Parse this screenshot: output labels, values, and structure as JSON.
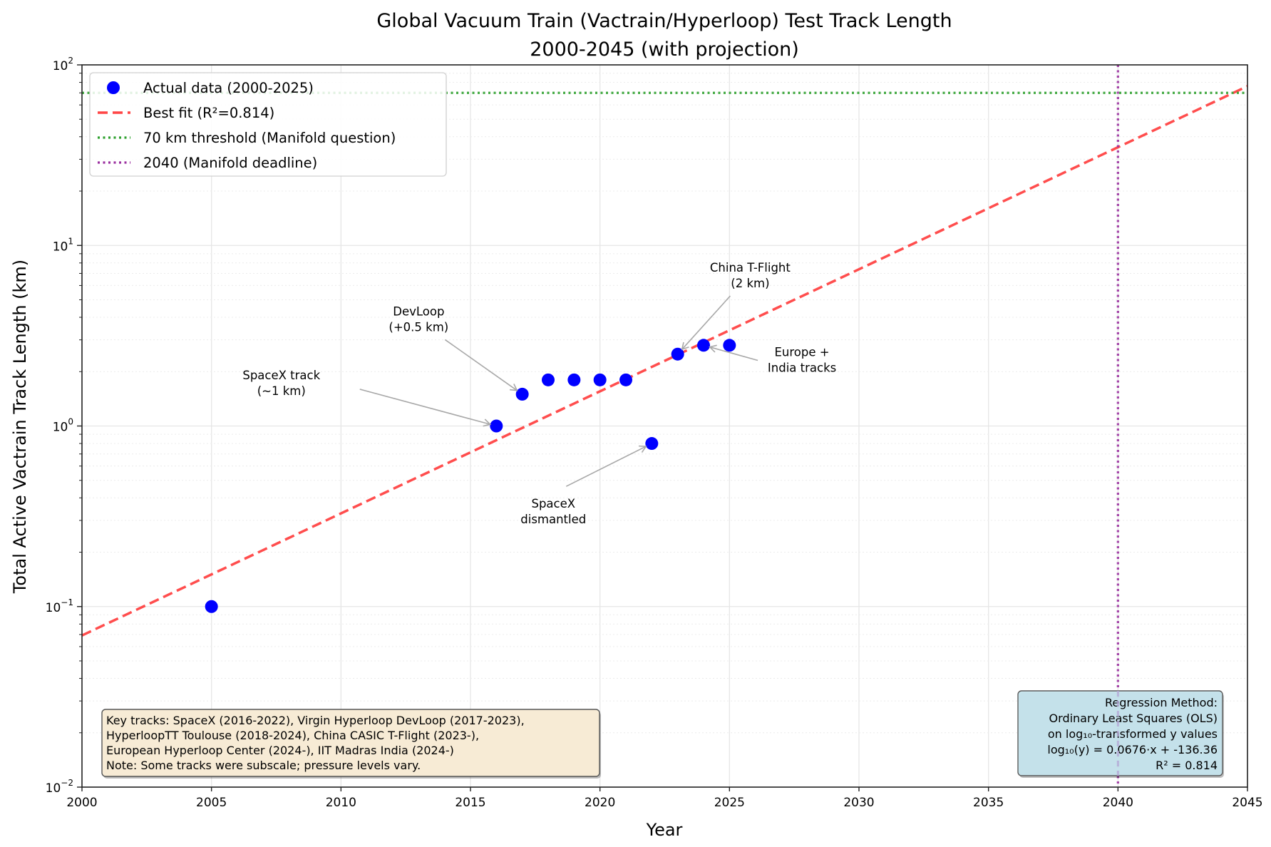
{
  "chart_data": {
    "type": "scatter",
    "title": "Global Vacuum Train (Vactrain/Hyperloop) Test Track Length",
    "subtitle": "2000-2045 (with projection)",
    "xlabel": "Year",
    "ylabel": "Total Active Vactrain Track Length (km)",
    "xlim": [
      2000,
      2045
    ],
    "ylim": [
      0.01,
      100
    ],
    "yscale": "log",
    "grid": true,
    "x_ticks": [
      "2000",
      "2005",
      "2010",
      "2015",
      "2020",
      "2025",
      "2030",
      "2035",
      "2040",
      "2045"
    ],
    "y_ticks": [
      {
        "base": "10",
        "exp": "−2",
        "value": 0.01
      },
      {
        "base": "10",
        "exp": "−1",
        "value": 0.1
      },
      {
        "base": "10",
        "exp": "0",
        "value": 1
      },
      {
        "base": "10",
        "exp": "1",
        "value": 10
      },
      {
        "base": "10",
        "exp": "2",
        "value": 100
      }
    ],
    "series": [
      {
        "name": "Actual data (2000-2025)",
        "kind": "scatter",
        "color": "#0000ff",
        "x": [
          2005,
          2016,
          2017,
          2018,
          2019,
          2020,
          2021,
          2022,
          2023,
          2024,
          2025
        ],
        "y": [
          0.1,
          1.0,
          1.5,
          1.8,
          1.8,
          1.8,
          1.8,
          0.8,
          2.5,
          2.8,
          2.8
        ]
      },
      {
        "name": "Best fit (R²=0.814)",
        "kind": "line",
        "style": "dashed",
        "color": "#ff4444",
        "slope": 0.0676,
        "intercept": -136.36,
        "x_range": [
          2000,
          2045
        ]
      },
      {
        "name": "70 km threshold (Manifold question)",
        "kind": "hline",
        "style": "dotted",
        "color": "#2ca02c",
        "y": 70
      },
      {
        "name": "2040 (Manifold deadline)",
        "kind": "vline",
        "style": "dotted",
        "color": "#9b30a0",
        "x": 2040
      }
    ],
    "legend": {
      "position": "top-left",
      "entries": [
        "Actual data (2000-2025)",
        "Best fit (R²=0.814)",
        "70 km threshold (Manifold question)",
        "2040 (Manifold deadline)"
      ]
    },
    "annotations": [
      {
        "lines": [
          "SpaceX track",
          "(~1 km)"
        ],
        "text_x": 2007.7,
        "text_y": 1.75,
        "target_x": 2016,
        "target_y": 1.0
      },
      {
        "lines": [
          "DevLoop",
          "(+0.5 km)"
        ],
        "text_x": 2013.0,
        "text_y": 3.95,
        "target_x": 2017,
        "target_y": 1.5
      },
      {
        "lines": [
          "China T-Flight",
          "(2 km)"
        ],
        "text_x": 2025.8,
        "text_y": 6.9,
        "target_x": 2023,
        "target_y": 2.5
      },
      {
        "lines": [
          "Europe +",
          "India tracks"
        ],
        "text_x": 2027.8,
        "text_y": 2.35,
        "target_x": 2024,
        "target_y": 2.8
      },
      {
        "lines": [
          "SpaceX",
          "dismantled"
        ],
        "text_x": 2018.2,
        "text_y": 0.34,
        "target_x": 2022,
        "target_y": 0.8
      }
    ],
    "notes_box": {
      "lines": [
        "Key tracks: SpaceX (2016-2022), Virgin Hyperloop DevLoop (2017-2023),",
        "HyperloopTT Toulouse (2018-2024), China CASIC T-Flight (2023-),",
        "European Hyperloop Center (2024-), IIT Madras India (2024-)",
        "Note: Some tracks were subscale; pressure levels vary."
      ],
      "position": "bottom-left",
      "color": "#f7ebd5"
    },
    "regression_box": {
      "lines": [
        "Regression Method:",
        "Ordinary Least Squares (OLS)",
        "on log₁₀-transformed y values",
        "log₁₀(y) = 0.0676·x + -136.36",
        "R² = 0.814"
      ],
      "position": "bottom-right",
      "color": "#c5e3ec"
    }
  }
}
